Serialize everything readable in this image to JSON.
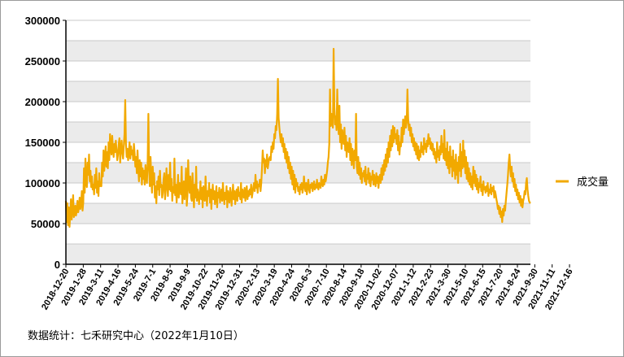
{
  "chart_data": {
    "type": "line",
    "title": "",
    "xlabel": "",
    "ylabel": "",
    "ylim": [
      0,
      300000
    ],
    "yticks": [
      0,
      50000,
      100000,
      150000,
      200000,
      250000,
      300000
    ],
    "grid": true,
    "grid_style": "alternating gray bands",
    "legend_position": "right",
    "x_tick_labels": [
      "2018-12-20",
      "2019-1-28",
      "2019-3-11",
      "2019-4-16",
      "2019-5-24",
      "2019-7-1",
      "2019-8-5",
      "2019-9-9",
      "2019-10-22",
      "2019-11-26",
      "2019-12-31",
      "2020-2-13",
      "2020-3-19",
      "2020-4-24",
      "2020-6-3",
      "2020-7-10",
      "2020-8-14",
      "2020-9-18",
      "2020-11-02",
      "2020-12-07",
      "2021-1-12",
      "2021-2-23",
      "2021-3-30",
      "2021-5-10",
      "2021-6-15",
      "2021-7-20",
      "2021-8-24",
      "2021-9-30",
      "2021-11-11",
      "2021-12-16"
    ],
    "series": [
      {
        "name": "成交量",
        "color": "#f2a900",
        "points_per_tick": 24,
        "values": [
          78000,
          52000,
          75000,
          48000,
          70000,
          46000,
          62000,
          80000,
          55000,
          68000,
          85000,
          58000,
          62000,
          72000,
          60000,
          66000,
          78000,
          64000,
          70000,
          82000,
          68000,
          74000,
          90000,
          66000,
          76000,
          118000,
          88000,
          130000,
          100000,
          95000,
          125000,
          110000,
          135000,
          102000,
          115000,
          95000,
          108000,
          92000,
          98000,
          86000,
          110000,
          94000,
          118000,
          88000,
          102000,
          84000,
          112000,
          96000,
          100000,
          96000,
          125000,
          108000,
          140000,
          115000,
          130000,
          145000,
          120000,
          138000,
          118000,
          150000,
          128000,
          160000,
          145000,
          135000,
          158000,
          142000,
          132000,
          148000,
          138000,
          152000,
          140000,
          128000,
          135000,
          148000,
          155000,
          125000,
          140000,
          152000,
          138000,
          130000,
          145000,
          160000,
          202000,
          148000,
          132000,
          142000,
          128000,
          138000,
          150000,
          130000,
          145000,
          135000,
          140000,
          128000,
          148000,
          136000,
          120000,
          132000,
          112000,
          140000,
          118000,
          102000,
          128000,
          108000,
          125000,
          98000,
          118000,
          105000,
          115000,
          98000,
          122000,
          108000,
          100000,
          125000,
          185000,
          118000,
          96000,
          132000,
          105000,
          88000,
          120000,
          98000,
          112000,
          82000,
          96000,
          75000,
          102000,
          92000,
          108000,
          85000,
          115000,
          95000,
          98000,
          82000,
          88000,
          105000,
          112000,
          80000,
          92000,
          118000,
          98000,
          84000,
          110000,
          92000,
          125000,
          90000,
          105000,
          78000,
          95000,
          88000,
          130000,
          85000,
          98000,
          76000,
          90000,
          110000,
          82000,
          100000,
          95000,
          86000,
          120000,
          75000,
          88000,
          102000,
          80000,
          95000,
          118000,
          72000,
          84000,
          128000,
          96000,
          88000,
          108000,
          82000,
          78000,
          112000,
          90000,
          70000,
          98000,
          82000,
          120000,
          78000,
          92000,
          86000,
          74000,
          88000,
          102000,
          80000,
          94000,
          70000,
          96000,
          84000,
          78000,
          108000,
          88000,
          72000,
          90000,
          84000,
          100000,
          76000,
          92000,
          68000,
          86000,
          98000,
          80000,
          90000,
          74000,
          84000,
          96000,
          70000,
          88000,
          82000,
          94000,
          76000,
          84000,
          92000,
          78000,
          100000,
          86000,
          74000,
          88000,
          80000,
          96000,
          70000,
          90000,
          82000,
          76000,
          94000,
          88000,
          72000,
          84000,
          98000,
          80000,
          90000,
          74000,
          86000,
          92000,
          78000,
          95000,
          84000,
          88000,
          80000,
          100000,
          76000,
          92000,
          86000,
          82000,
          94000,
          78000,
          88000,
          96000,
          80000,
          90000,
          84000,
          92000,
          86000,
          98000,
          82000,
          88000,
          95000,
          100000,
          90000,
          110000,
          94000,
          102000,
          88000,
          98000,
          96000,
          104000,
          90000,
          100000,
          118000,
          140000,
          125000,
          130000,
          112000,
          128000,
          120000,
          135000,
          118000,
          125000,
          130000,
          132000,
          128000,
          145000,
          138000,
          150000,
          142000,
          160000,
          155000,
          170000,
          165000,
          185000,
          228000,
          180000,
          168000,
          158000,
          150000,
          160000,
          145000,
          155000,
          138000,
          148000,
          130000,
          142000,
          125000,
          138000,
          118000,
          132000,
          112000,
          125000,
          105000,
          120000,
          98000,
          115000,
          92000,
          110000,
          88000,
          105000,
          96000,
          100000,
          90000,
          95000,
          86000,
          98000,
          92000,
          100000,
          88000,
          94000,
          108000,
          96000,
          90000,
          100000,
          86000,
          96000,
          104000,
          92000,
          88000,
          98000,
          94000,
          100000,
          90000,
          96000,
          102000,
          92000,
          98000,
          94000,
          104000,
          96000,
          92000,
          100000,
          98000,
          94000,
          108000,
          100000,
          96000,
          104000,
          98000,
          110000,
          102000,
          108000,
          115000,
          125000,
          132000,
          148000,
          215000,
          170000,
          185000,
          175000,
          168000,
          265000,
          195000,
          172000,
          182000,
          165000,
          215000,
          178000,
          160000,
          195000,
          150000,
          172000,
          142000,
          165000,
          155000,
          148000,
          168000,
          140000,
          158000,
          132000,
          150000,
          145000,
          138000,
          155000,
          128000,
          148000,
          122000,
          142000,
          135000,
          118000,
          140000,
          128000,
          185000,
          120000,
          112000,
          132000,
          110000,
          125000,
          105000,
          118000,
          100000,
          112000,
          108000,
          115000,
          102000,
          120000,
          98000,
          110000,
          105000,
          118000,
          100000,
          112000,
          96000,
          108000,
          104000,
          115000,
          98000,
          110000,
          102000,
          96000,
          112000,
          100000,
          108000,
          94000,
          105000,
          110000,
          100000,
          118000,
          104000,
          122000,
          110000,
          128000,
          115000,
          135000,
          120000,
          142000,
          125000,
          150000,
          132000,
          158000,
          140000,
          165000,
          145000,
          170000,
          150000,
          168000,
          155000,
          160000,
          148000,
          165000,
          140000,
          158000,
          135000,
          150000,
          145000,
          168000,
          150000,
          178000,
          160000,
          172000,
          182000,
          168000,
          175000,
          215000,
          180000,
          165000,
          172000,
          158000,
          168000,
          150000,
          160000,
          145000,
          155000,
          140000,
          150000,
          135000,
          148000,
          130000,
          145000,
          128000,
          140000,
          132000,
          150000,
          138000,
          145000,
          135000,
          155000,
          142000,
          148000,
          138000,
          152000,
          145000,
          160000,
          148000,
          155000,
          142000,
          150000,
          140000,
          148000,
          135000,
          142000,
          130000,
          138000,
          125000,
          150000,
          132000,
          140000,
          128000,
          145000,
          135000,
          158000,
          138000,
          148000,
          130000,
          165000,
          128000,
          142000,
          122000,
          150000,
          118000,
          138000,
          112000,
          145000,
          120000,
          132000,
          108000,
          140000,
          115000,
          128000,
          105000,
          135000,
          110000,
          125000,
          100000,
          132000,
          115000,
          148000,
          108000,
          138000,
          118000,
          152000,
          120000,
          140000,
          112000,
          132000,
          105000,
          125000,
          102000,
          118000,
          98000,
          112000,
          95000,
          108000,
          92000,
          120000,
          100000,
          115000,
          96000,
          110000,
          92000,
          105000,
          88000,
          100000,
          95000,
          108000,
          90000,
          98000,
          85000,
          102000,
          92000,
          95000,
          88000,
          96000,
          90000,
          100000,
          84000,
          92000,
          88000,
          98000,
          86000,
          94000,
          90000,
          96000,
          82000,
          90000,
          86000,
          80000,
          75000,
          68000,
          72000,
          62000,
          70000,
          58000,
          65000,
          52000,
          68000,
          60000,
          72000,
          66000,
          78000,
          88000,
          98000,
          110000,
          125000,
          135000,
          118000,
          108000,
          120000,
          102000,
          112000,
          95000,
          105000,
          90000,
          98000,
          85000,
          92000,
          80000,
          88000,
          76000,
          84000,
          72000,
          80000,
          70000,
          78000,
          82000,
          90000,
          86000,
          100000,
          106000,
          92000,
          84000,
          78000,
          76000,
          75000
        ]
      }
    ]
  },
  "legend": {
    "label": "成交量",
    "color": "#f2a900"
  },
  "source_note": "数据统计：七禾研究中心（2022年1月10日）"
}
